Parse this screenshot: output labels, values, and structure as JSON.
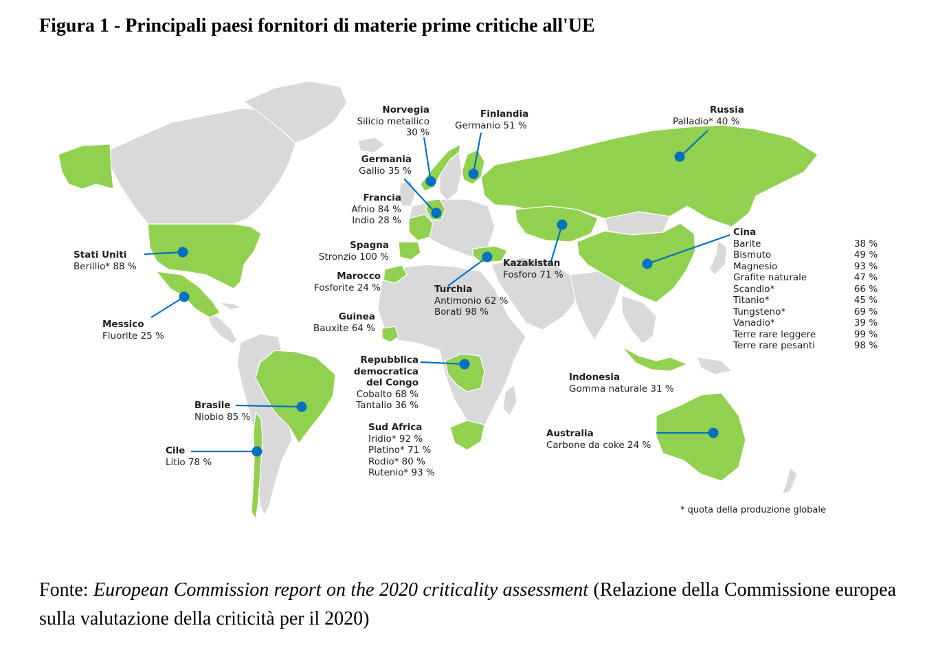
{
  "title": "Figura 1 - Principali paesi fornitori di materie prime critiche all'UE",
  "colors": {
    "supplier": "#92d050",
    "land": "#d9d9d9",
    "marker": "#0070c0",
    "line": "#0070c0"
  },
  "countries": {
    "norvegia": {
      "name": "Norvegia",
      "lines": [
        "Silicio metallico",
        "30 %"
      ]
    },
    "finlandia": {
      "name": "Finlandia",
      "lines": [
        "Germanio 51 %"
      ]
    },
    "russia": {
      "name": "Russia",
      "lines": [
        "Palladio* 40 %"
      ]
    },
    "germania": {
      "name": "Germania",
      "lines": [
        "Gallio 35 %"
      ]
    },
    "francia": {
      "name": "Francia",
      "lines": [
        "Afnio 84 %",
        "Indio 28 %"
      ]
    },
    "spagna": {
      "name": "Spagna",
      "lines": [
        "Stronzio 100 %"
      ]
    },
    "marocco": {
      "name": "Marocco",
      "lines": [
        "Fosforite 24 %"
      ]
    },
    "guinea": {
      "name": "Guinea",
      "lines": [
        "Bauxite 64 %"
      ]
    },
    "stati_uniti": {
      "name": "Stati Uniti",
      "lines": [
        "Berillio* 88 %"
      ]
    },
    "messico": {
      "name": "Messico",
      "lines": [
        "Fluorite 25 %"
      ]
    },
    "kazakistan": {
      "name": "Kazakistan",
      "lines": [
        "Fosforo 71 %"
      ]
    },
    "turchia": {
      "name": "Turchia",
      "lines": [
        "Antimonio 62 %",
        "Borati 98 %"
      ]
    },
    "congo": {
      "name_lines": [
        "Repubblica",
        "democratica",
        "del Congo"
      ],
      "lines": [
        "Cobalto 68 %",
        "Tantalio 36 %"
      ]
    },
    "brasile": {
      "name": "Brasile",
      "lines": [
        "Niobio 85 %"
      ]
    },
    "cile": {
      "name": "Cile",
      "lines": [
        "Litio 78 %"
      ]
    },
    "sud_africa": {
      "name": "Sud Africa",
      "lines": [
        "Iridio* 92 %",
        "Platino* 71 %",
        "Rodio* 80 %",
        "Rutenio* 93 %"
      ]
    },
    "indonesia": {
      "name": "Indonesia",
      "lines": [
        "Gomma naturale 31 %"
      ]
    },
    "australia": {
      "name": "Australia",
      "lines": [
        "Carbone da coke 24 %"
      ]
    },
    "cina": {
      "name": "Cina",
      "materials": [
        {
          "name": "Barite",
          "value": "38 %"
        },
        {
          "name": "Bismuto",
          "value": "49 %"
        },
        {
          "name": "Magnesio",
          "value": "93 %"
        },
        {
          "name": "Grafite naturale",
          "value": "47 %"
        },
        {
          "name": "Scandio*",
          "value": "66 %"
        },
        {
          "name": "Titanio*",
          "value": "45 %"
        },
        {
          "name": "Tungsteno*",
          "value": "69 %"
        },
        {
          "name": "Vanadio*",
          "value": "39 %"
        },
        {
          "name": "Terre rare leggere",
          "value": "99 %"
        },
        {
          "name": "Terre rare pesanti",
          "value": "98 %"
        }
      ]
    }
  },
  "footnote": "* quota della produzione globale",
  "source": {
    "prefix": "Fonte: ",
    "report": "European Commission report on the 2020 criticality assessment",
    "suffix": " (Relazione della Commissione europea sulla valutazione della criticità per il 2020)"
  }
}
